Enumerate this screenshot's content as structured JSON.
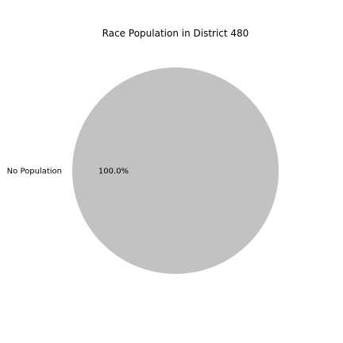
{
  "chart_data": {
    "type": "pie",
    "title": "Race Population in District 480",
    "slices": [
      {
        "label": "No Population",
        "value": 100.0,
        "percent_label": "100.0%",
        "color": "#c2c2c2"
      }
    ],
    "legend": "none"
  }
}
